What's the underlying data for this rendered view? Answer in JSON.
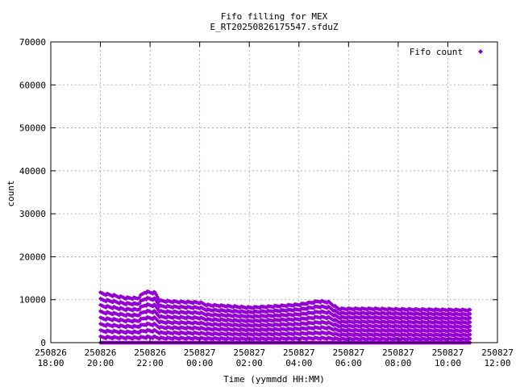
{
  "chart_data": {
    "type": "scatter",
    "title": "Fifo filling for MEX",
    "subtitle": "E_RT20250826175547.sfduZ",
    "xlabel": "Time (yymmdd HH:MM)",
    "ylabel": "count",
    "ylim": [
      0,
      70000
    ],
    "yticks": [
      0,
      10000,
      20000,
      30000,
      40000,
      50000,
      60000,
      70000
    ],
    "xlim_hours": [
      18,
      36
    ],
    "xticks": [
      {
        "hour": 18,
        "date": "250826",
        "time": "18:00"
      },
      {
        "hour": 20,
        "date": "250826",
        "time": "20:00"
      },
      {
        "hour": 22,
        "date": "250826",
        "time": "22:00"
      },
      {
        "hour": 24,
        "date": "250827",
        "time": "00:00"
      },
      {
        "hour": 26,
        "date": "250827",
        "time": "02:00"
      },
      {
        "hour": 28,
        "date": "250827",
        "time": "04:00"
      },
      {
        "hour": 30,
        "date": "250827",
        "time": "06:00"
      },
      {
        "hour": 32,
        "date": "250827",
        "time": "08:00"
      },
      {
        "hour": 34,
        "date": "250827",
        "time": "10:00"
      },
      {
        "hour": 36,
        "date": "250827",
        "time": "12:00"
      }
    ],
    "grid": true,
    "legend_position": "top-right",
    "series": [
      {
        "name": "Fifo count",
        "color": "#9400d3",
        "marker": "diamond",
        "time_range_hours": [
          20.0,
          34.9
        ],
        "sawtooth_min": 0,
        "envelope_max": [
          {
            "hour": 20.0,
            "value": 11700
          },
          {
            "hour": 20.5,
            "value": 11200
          },
          {
            "hour": 21.0,
            "value": 10600
          },
          {
            "hour": 21.5,
            "value": 10500
          },
          {
            "hour": 21.8,
            "value": 12000
          },
          {
            "hour": 22.2,
            "value": 11800
          },
          {
            "hour": 22.4,
            "value": 9900
          },
          {
            "hour": 23.0,
            "value": 9700
          },
          {
            "hour": 24.0,
            "value": 9500
          },
          {
            "hour": 24.3,
            "value": 8900
          },
          {
            "hour": 25.0,
            "value": 8700
          },
          {
            "hour": 26.0,
            "value": 8300
          },
          {
            "hour": 27.0,
            "value": 8600
          },
          {
            "hour": 28.0,
            "value": 9000
          },
          {
            "hour": 28.8,
            "value": 9800
          },
          {
            "hour": 29.2,
            "value": 9600
          },
          {
            "hour": 29.6,
            "value": 8000
          },
          {
            "hour": 31.0,
            "value": 8000
          },
          {
            "hour": 32.0,
            "value": 7900
          },
          {
            "hour": 34.9,
            "value": 7700
          }
        ],
        "level_steps": 8
      }
    ]
  }
}
